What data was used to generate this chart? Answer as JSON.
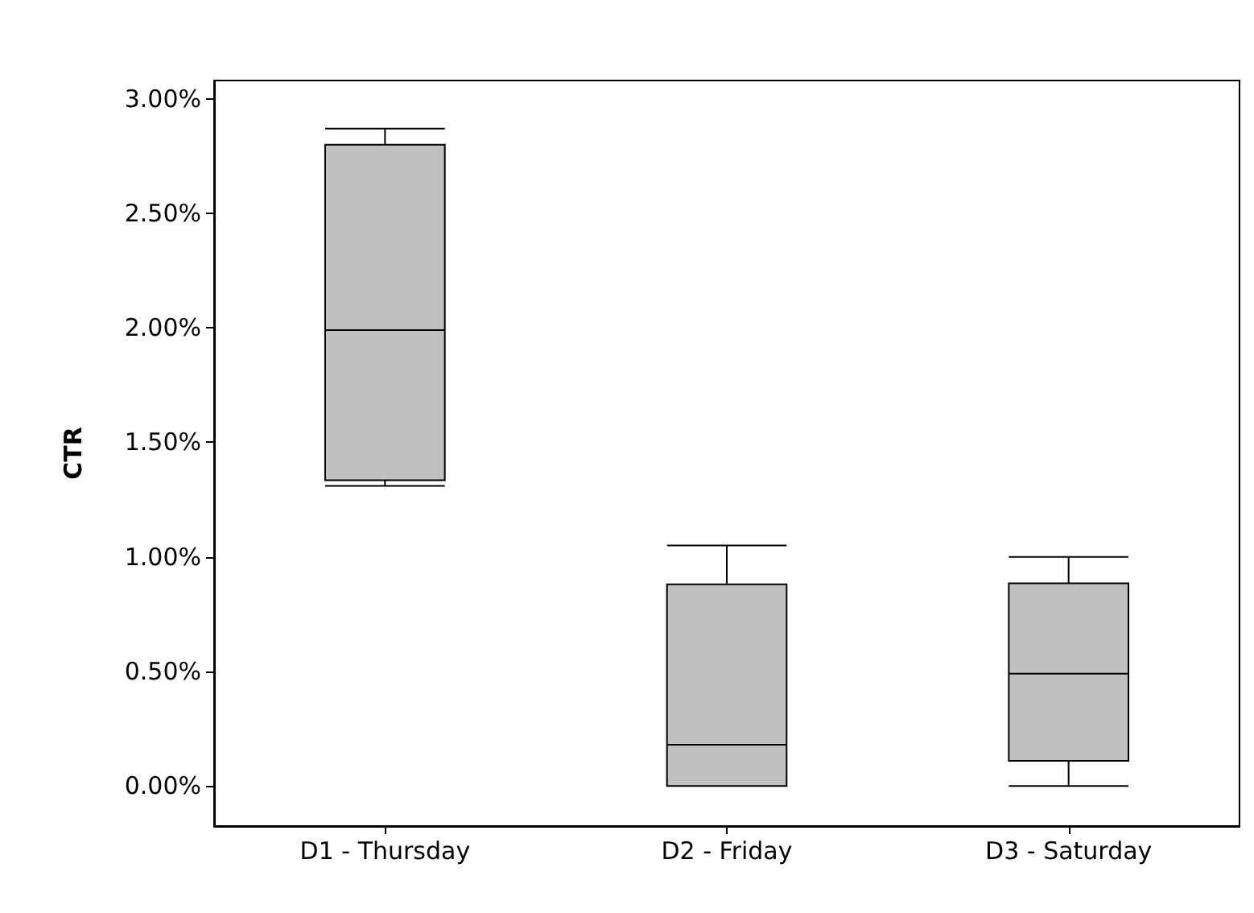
{
  "chart_data": {
    "type": "box",
    "ylabel": "CTR",
    "categories": [
      "D1 - Thursday",
      "D2 - Friday",
      "D3 - Saturday"
    ],
    "boxes": [
      {
        "low": 1.31,
        "q1": 1.335,
        "median": 1.99,
        "q3": 2.8,
        "high": 2.87
      },
      {
        "low": 0,
        "q1": 0,
        "median": 0.18,
        "q3": 0.88,
        "high": 1.05
      },
      {
        "low": 0,
        "q1": 0.11,
        "median": 0.49,
        "q3": 0.885,
        "high": 1.0
      }
    ],
    "color": "#c0c0c0",
    "ylim": [
      -0.175,
      3.08
    ],
    "yticks": [
      {
        "value": 0,
        "label": "0.00%"
      },
      {
        "value": 0.5,
        "label": "0.50%"
      },
      {
        "value": 1,
        "label": "1.00%"
      },
      {
        "value": 1.5,
        "label": "1.50%"
      },
      {
        "value": 2,
        "label": "2.00%"
      },
      {
        "value": 2.5,
        "label": "2.50%"
      },
      {
        "value": 3,
        "label": "3.00%"
      }
    ],
    "grid": false
  }
}
